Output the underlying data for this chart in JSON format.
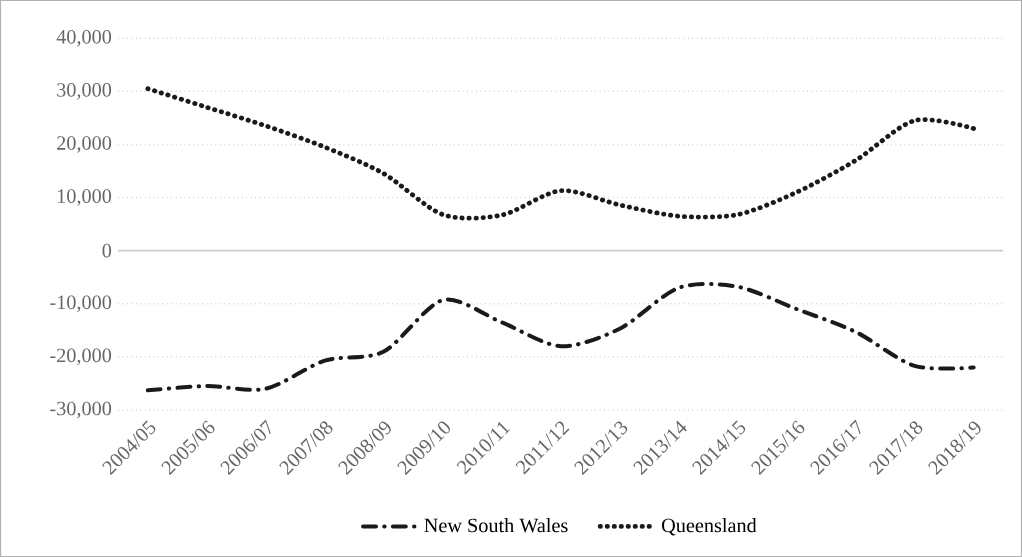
{
  "chart_data": {
    "type": "line",
    "categories": [
      "2004/05",
      "2005/06",
      "2006/07",
      "2007/08",
      "2008/09",
      "2009/10",
      "2010/11",
      "2011/12",
      "2012/13",
      "2013/14",
      "2014/15",
      "2015/16",
      "2016/17",
      "2017/18",
      "2018/19"
    ],
    "series": [
      {
        "name": "New South Wales",
        "color": "#1a1a1a",
        "line_style": "dashdot",
        "values": [
          -26300,
          -25500,
          -26000,
          -20700,
          -19000,
          -9300,
          -13500,
          -18000,
          -14700,
          -7000,
          -6800,
          -11000,
          -15300,
          -21700,
          -22000
        ]
      },
      {
        "name": "Queensland",
        "color": "#1a1a1a",
        "line_style": "dotted",
        "values": [
          30500,
          27000,
          23500,
          19500,
          14500,
          6800,
          6700,
          11300,
          8600,
          6500,
          6800,
          11000,
          17000,
          24500,
          23000
        ]
      }
    ],
    "ylim": [
      -30000,
      40000
    ],
    "yticks": [
      {
        "value": -30000,
        "label": "-30,000"
      },
      {
        "value": -20000,
        "label": "-20,000"
      },
      {
        "value": -10000,
        "label": "-10,000"
      },
      {
        "value": 0,
        "label": "0"
      },
      {
        "value": 10000,
        "label": "10,000"
      },
      {
        "value": 20000,
        "label": "20,000"
      },
      {
        "value": 30000,
        "label": "30,000"
      },
      {
        "value": 40000,
        "label": "40,000"
      }
    ],
    "grid": "y",
    "legend": "bottom",
    "marker": "none"
  }
}
